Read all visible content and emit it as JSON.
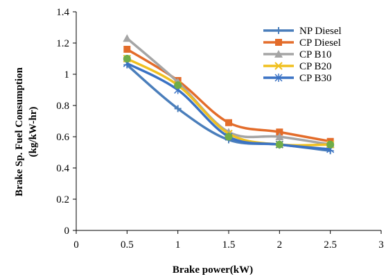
{
  "chart_data": {
    "type": "line",
    "xlabel": "Brake power(kW)",
    "ylabel_lines": [
      "Brake Sp. Fuel Consumption",
      "(kg/kW-hr)"
    ],
    "xlim": [
      0,
      3
    ],
    "ylim": [
      0,
      1.4
    ],
    "xticks": [
      "0",
      "0.5",
      "1",
      "1.5",
      "2",
      "2.5",
      "3"
    ],
    "yticks": [
      "0",
      "0.2",
      "0.4",
      "0.6",
      "0.8",
      "1",
      "1.2",
      "1.4"
    ],
    "x": [
      0.5,
      1,
      1.5,
      2,
      2.5
    ],
    "grid": false,
    "legend_position": "top-right",
    "series": [
      {
        "name": "NP Diesel",
        "values": [
          1.06,
          0.78,
          0.58,
          0.55,
          0.51
        ],
        "color": "#4a7ebb",
        "marker": "plus"
      },
      {
        "name": "CP Diesel",
        "values": [
          1.16,
          0.96,
          0.69,
          0.63,
          0.57
        ],
        "color": "#e36c2a",
        "marker": "square"
      },
      {
        "name": "CP B10",
        "values": [
          1.23,
          0.95,
          0.63,
          0.6,
          0.55
        ],
        "color": "#a5a5a5",
        "marker": "triangle"
      },
      {
        "name": "CP B20",
        "values": [
          1.1,
          0.93,
          0.62,
          0.55,
          0.55
        ],
        "color": "#f0c020",
        "marker": "x"
      },
      {
        "name": "CP B30",
        "values": [
          1.07,
          0.9,
          0.6,
          0.55,
          0.52
        ],
        "color": "#3a72c4",
        "marker": "star"
      }
    ],
    "extra_points": [
      {
        "x": 0.5,
        "y": 1.1,
        "color": "#70ad47"
      },
      {
        "x": 1,
        "y": 0.93,
        "color": "#70ad47"
      },
      {
        "x": 1.5,
        "y": 0.6,
        "color": "#70ad47"
      },
      {
        "x": 2,
        "y": 0.55,
        "color": "#70ad47"
      },
      {
        "x": 2.5,
        "y": 0.55,
        "color": "#70ad47"
      }
    ]
  }
}
